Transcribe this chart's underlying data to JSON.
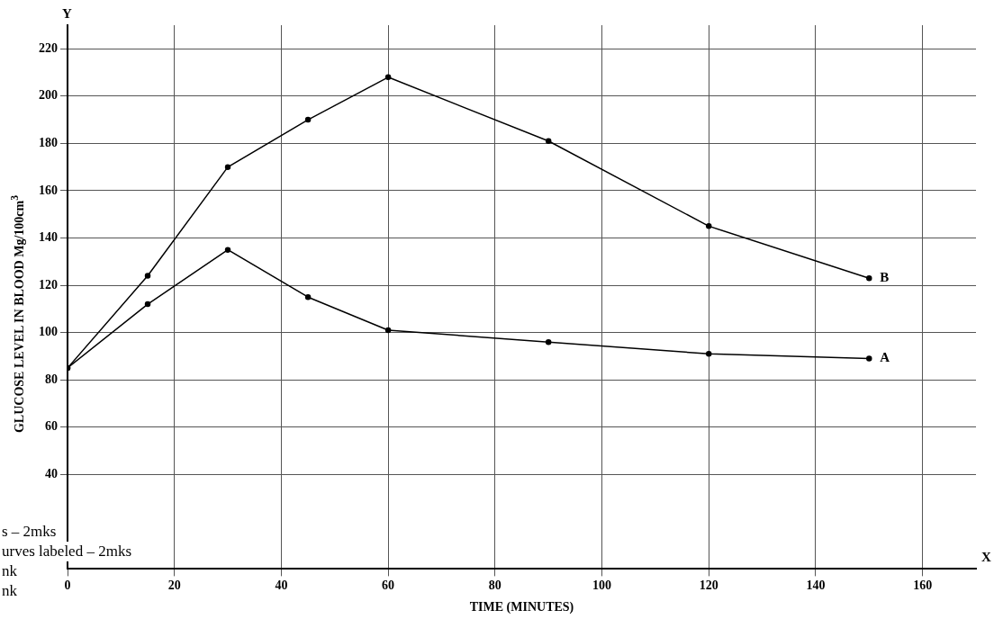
{
  "chart_data": {
    "type": "line",
    "xlabel": "TIME (MINUTES)",
    "ylabel": "GLUCOSE LEVEL IN BLOOD Mg/100cm$^{3}$",
    "x": [
      0,
      15,
      30,
      45,
      60,
      90,
      120,
      150
    ],
    "series": [
      {
        "name": "A",
        "color": "#000000",
        "values": [
          85,
          112,
          135,
          115,
          101,
          96,
          91,
          89
        ]
      },
      {
        "name": "B",
        "color": "#000000",
        "values": [
          85,
          124,
          170,
          190,
          208,
          181,
          145,
          123
        ]
      }
    ],
    "xlim": [
      0,
      170
    ],
    "xticks": [
      0,
      20,
      40,
      60,
      80,
      100,
      120,
      140,
      160
    ],
    "ylim": [
      0,
      230
    ],
    "yticks": [
      40,
      60,
      80,
      100,
      120,
      140,
      160,
      180,
      200,
      220
    ],
    "grid": true,
    "marker": "circle",
    "line_style": "solid",
    "legend": false,
    "annotations": [
      "Y",
      "X",
      "s – 2mks",
      "urves labeled – 2mks",
      "nk",
      "nk"
    ]
  }
}
